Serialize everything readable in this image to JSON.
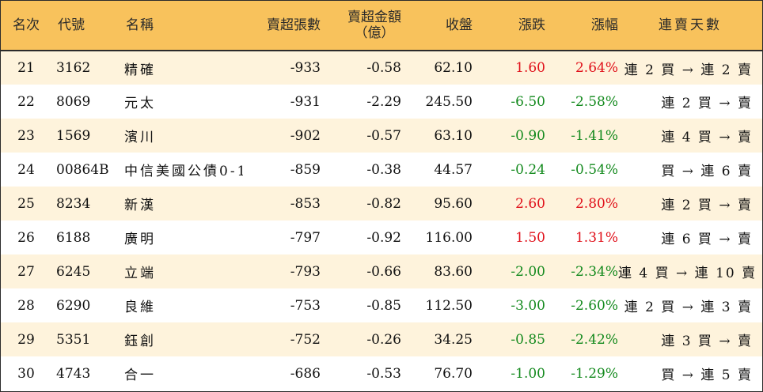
{
  "header": {
    "rank": "名次",
    "code": "代號",
    "name": "名稱",
    "net_sell_lots": "賣超張數",
    "net_sell_amount_line1": "賣超金額",
    "net_sell_amount_line2": "（億）",
    "close": "收盤",
    "change": "漲跌",
    "change_pct": "漲幅",
    "streak": "連賣天數"
  },
  "rows": [
    {
      "rank": "21",
      "code": "3162",
      "name": "精確",
      "lots": "-933",
      "amount": "-0.58",
      "close": "62.10",
      "change": "1.60",
      "pct": "2.64%",
      "streak": "連 2 買 → 連 2 賣",
      "dir": "up"
    },
    {
      "rank": "22",
      "code": "8069",
      "name": "元太",
      "lots": "-931",
      "amount": "-2.29",
      "close": "245.50",
      "change": "-6.50",
      "pct": "-2.58%",
      "streak": "連 2 買 → 賣",
      "dir": "down"
    },
    {
      "rank": "23",
      "code": "1569",
      "name": "濱川",
      "lots": "-902",
      "amount": "-0.57",
      "close": "63.10",
      "change": "-0.90",
      "pct": "-1.41%",
      "streak": "連 4 買 → 賣",
      "dir": "down"
    },
    {
      "rank": "24",
      "code": "00864B",
      "name": "中信美國公債0-1",
      "lots": "-859",
      "amount": "-0.38",
      "close": "44.57",
      "change": "-0.24",
      "pct": "-0.54%",
      "streak": "買 → 連 6 賣",
      "dir": "down"
    },
    {
      "rank": "25",
      "code": "8234",
      "name": "新漢",
      "lots": "-853",
      "amount": "-0.82",
      "close": "95.60",
      "change": "2.60",
      "pct": "2.80%",
      "streak": "連 2 買 → 賣",
      "dir": "up"
    },
    {
      "rank": "26",
      "code": "6188",
      "name": "廣明",
      "lots": "-797",
      "amount": "-0.92",
      "close": "116.00",
      "change": "1.50",
      "pct": "1.31%",
      "streak": "連 6 買 → 賣",
      "dir": "up"
    },
    {
      "rank": "27",
      "code": "6245",
      "name": "立端",
      "lots": "-793",
      "amount": "-0.66",
      "close": "83.60",
      "change": "-2.00",
      "pct": "-2.34%",
      "streak": "連 4 買 → 連 10 賣",
      "dir": "down"
    },
    {
      "rank": "28",
      "code": "6290",
      "name": "良維",
      "lots": "-753",
      "amount": "-0.85",
      "close": "112.50",
      "change": "-3.00",
      "pct": "-2.60%",
      "streak": "連 2 買 → 連 3 賣",
      "dir": "down"
    },
    {
      "rank": "29",
      "code": "5351",
      "name": "鈺創",
      "lots": "-752",
      "amount": "-0.26",
      "close": "34.25",
      "change": "-0.85",
      "pct": "-2.42%",
      "streak": "連 3 買 → 賣",
      "dir": "down"
    },
    {
      "rank": "30",
      "code": "4743",
      "name": "合一",
      "lots": "-686",
      "amount": "-0.53",
      "close": "76.70",
      "change": "-1.00",
      "pct": "-1.29%",
      "streak": "買 → 連 5 賣",
      "dir": "down"
    }
  ],
  "colors": {
    "header_bg": "#f8c25c",
    "odd_row_bg": "#fef3dc",
    "up": "#e0101a",
    "down": "#148a1e"
  }
}
